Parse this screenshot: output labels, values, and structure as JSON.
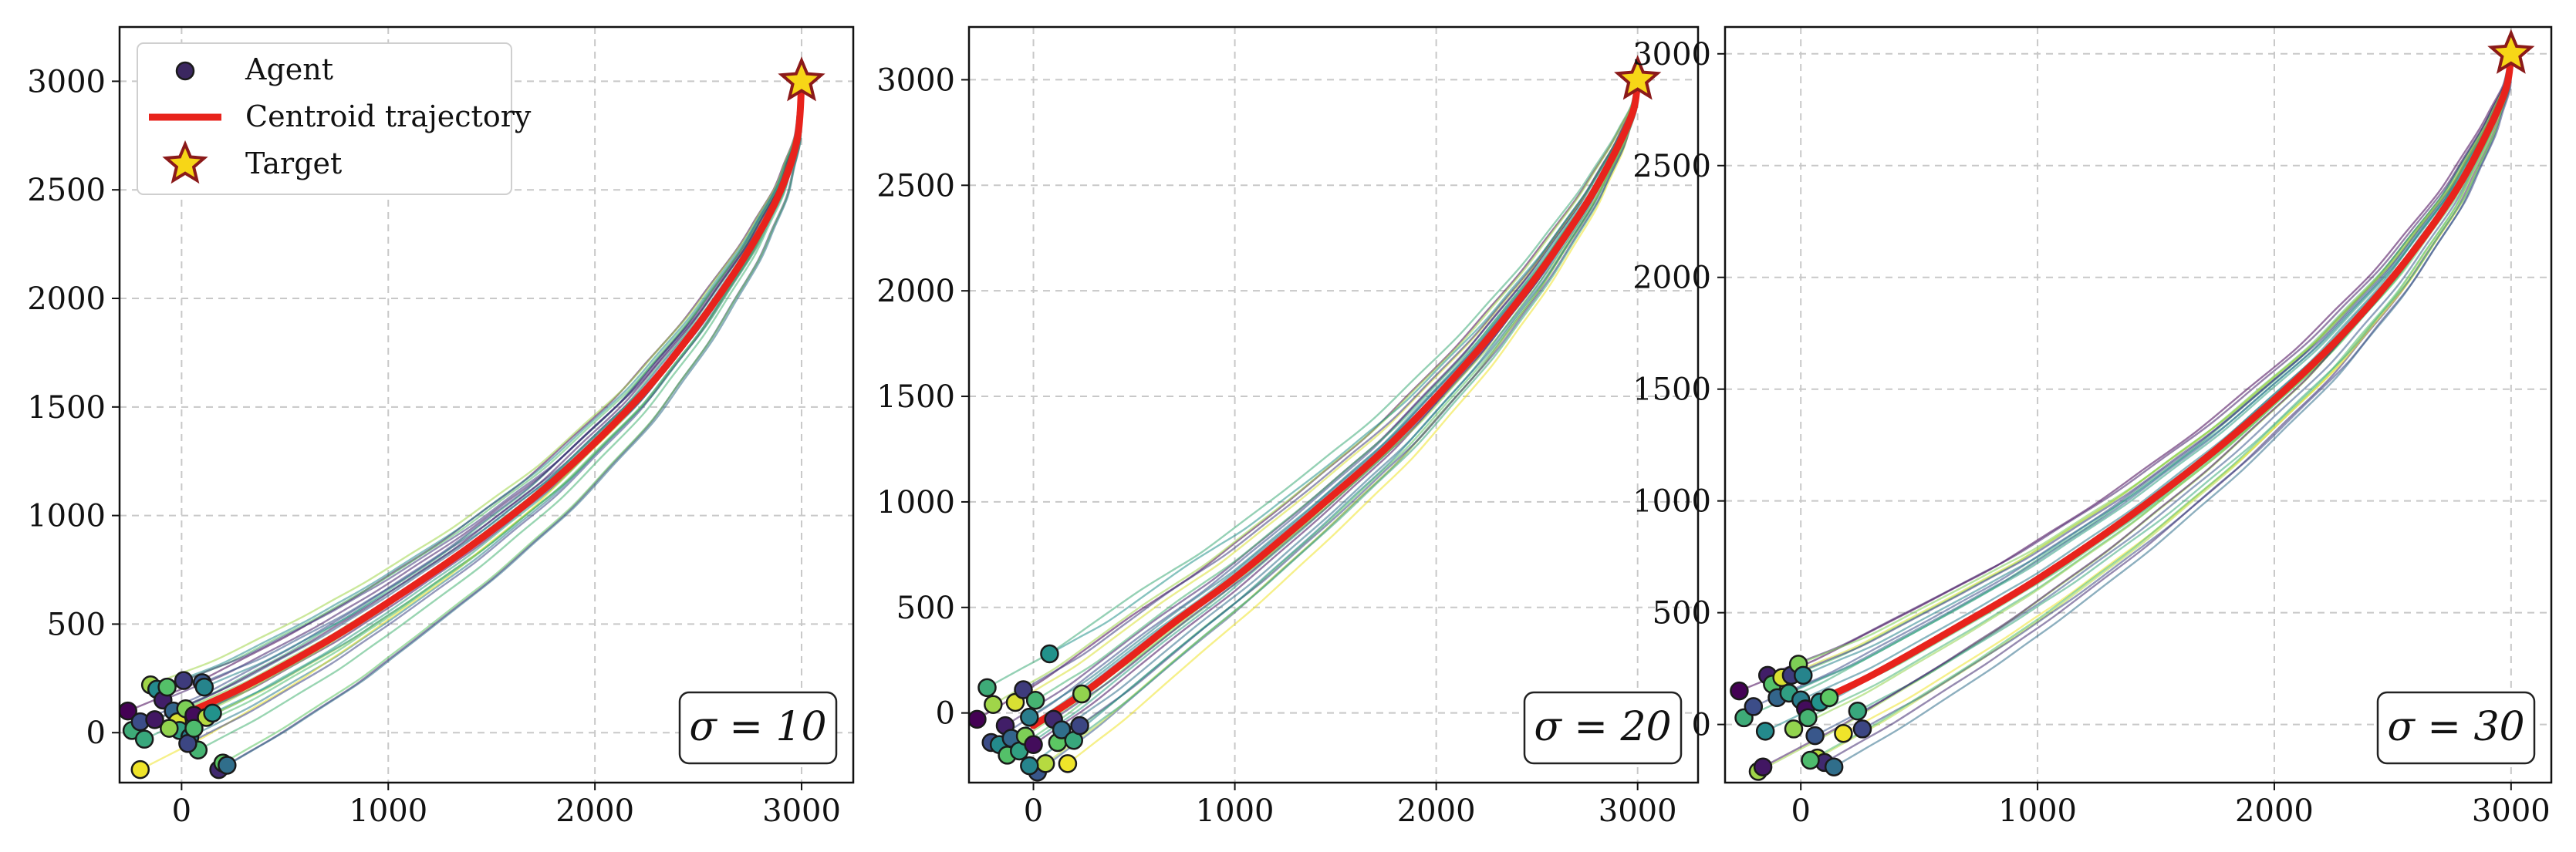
{
  "legend": {
    "agent_label": "Agent",
    "centroid_label": "Centroid trajectory",
    "target_label": "Target"
  },
  "colors": {
    "centroid": "#e8231c",
    "target_fill": "#f7d617",
    "target_edge": "#8b1a1a",
    "grid": "#c8c8c8",
    "viridis": [
      "#440154",
      "#3b528b",
      "#21918c",
      "#5ec962",
      "#fde725"
    ]
  },
  "chart_data": [
    {
      "type": "line",
      "annotation": "σ = 10",
      "xlim": [
        -300,
        3250
      ],
      "ylim": [
        -230,
        3250
      ],
      "xticks": [
        0,
        1000,
        2000,
        3000
      ],
      "yticks": [
        0,
        500,
        1000,
        1500,
        2000,
        2500,
        3000
      ],
      "grid": true,
      "legend_position": "upper-left",
      "target": [
        3000,
        3000
      ],
      "centroid": [
        [
          0,
          80
        ],
        [
          300,
          210
        ],
        [
          700,
          420
        ],
        [
          1000,
          600
        ],
        [
          1400,
          860
        ],
        [
          1800,
          1160
        ],
        [
          2200,
          1530
        ],
        [
          2500,
          1880
        ],
        [
          2750,
          2230
        ],
        [
          2900,
          2500
        ],
        [
          2980,
          2740
        ],
        [
          3000,
          3000
        ]
      ],
      "agents": [
        [
          -260,
          100
        ],
        [
          -240,
          10
        ],
        [
          -200,
          50
        ],
        [
          -150,
          220
        ],
        [
          -120,
          200
        ],
        [
          -90,
          150
        ],
        [
          -70,
          210
        ],
        [
          -40,
          100
        ],
        [
          -20,
          50
        ],
        [
          -10,
          10
        ],
        [
          10,
          240
        ],
        [
          20,
          110
        ],
        [
          40,
          -20
        ],
        [
          60,
          80
        ],
        [
          80,
          -80
        ],
        [
          100,
          230
        ],
        [
          120,
          70
        ],
        [
          150,
          90
        ],
        [
          180,
          -170
        ],
        [
          200,
          -140
        ],
        [
          220,
          -150
        ],
        [
          -200,
          -170
        ],
        [
          -180,
          -30
        ],
        [
          30,
          -50
        ],
        [
          -60,
          20
        ],
        [
          110,
          210
        ],
        [
          -130,
          60
        ],
        [
          60,
          20
        ]
      ]
    },
    {
      "type": "line",
      "annotation": "σ = 20",
      "xlim": [
        -320,
        3300
      ],
      "ylim": [
        -330,
        3250
      ],
      "xticks": [
        0,
        1000,
        2000,
        3000
      ],
      "yticks": [
        0,
        500,
        1000,
        1500,
        2000,
        2500,
        3000
      ],
      "grid": true,
      "legend_position": "",
      "target": [
        3000,
        3000
      ],
      "centroid": [
        [
          0,
          -60
        ],
        [
          300,
          130
        ],
        [
          700,
          430
        ],
        [
          1000,
          640
        ],
        [
          1400,
          960
        ],
        [
          1800,
          1300
        ],
        [
          2200,
          1710
        ],
        [
          2500,
          2070
        ],
        [
          2750,
          2420
        ],
        [
          2900,
          2680
        ],
        [
          2980,
          2860
        ],
        [
          3000,
          3000
        ]
      ],
      "agents": [
        [
          -280,
          -30
        ],
        [
          -230,
          120
        ],
        [
          -210,
          -140
        ],
        [
          -200,
          40
        ],
        [
          -170,
          -150
        ],
        [
          -140,
          -60
        ],
        [
          -130,
          -200
        ],
        [
          -110,
          -120
        ],
        [
          -90,
          50
        ],
        [
          -70,
          -180
        ],
        [
          -50,
          110
        ],
        [
          -40,
          -110
        ],
        [
          -20,
          -20
        ],
        [
          0,
          -150
        ],
        [
          10,
          60
        ],
        [
          20,
          -280
        ],
        [
          60,
          -240
        ],
        [
          80,
          280
        ],
        [
          100,
          -30
        ],
        [
          120,
          -140
        ],
        [
          140,
          -80
        ],
        [
          170,
          -240
        ],
        [
          200,
          -130
        ],
        [
          230,
          -60
        ],
        [
          240,
          90
        ],
        [
          -20,
          -250
        ]
      ]
    },
    {
      "type": "line",
      "annotation": "σ = 30",
      "xlim": [
        -320,
        3170
      ],
      "ylim": [
        -260,
        3120
      ],
      "xticks": [
        0,
        1000,
        2000,
        3000
      ],
      "yticks": [
        0,
        500,
        1000,
        1500,
        2000,
        2500,
        3000
      ],
      "grid": true,
      "legend_position": "",
      "target": [
        3000,
        3000
      ],
      "centroid": [
        [
          0,
          70
        ],
        [
          300,
          220
        ],
        [
          700,
          460
        ],
        [
          1000,
          650
        ],
        [
          1400,
          940
        ],
        [
          1800,
          1270
        ],
        [
          2200,
          1650
        ],
        [
          2500,
          2000
        ],
        [
          2750,
          2360
        ],
        [
          2900,
          2650
        ],
        [
          2980,
          2850
        ],
        [
          3000,
          3000
        ]
      ],
      "agents": [
        [
          -260,
          150
        ],
        [
          -240,
          30
        ],
        [
          -200,
          80
        ],
        [
          -180,
          -210
        ],
        [
          -150,
          -30
        ],
        [
          -140,
          220
        ],
        [
          -120,
          180
        ],
        [
          -100,
          120
        ],
        [
          -80,
          210
        ],
        [
          -50,
          140
        ],
        [
          -40,
          220
        ],
        [
          -10,
          270
        ],
        [
          0,
          110
        ],
        [
          20,
          70
        ],
        [
          30,
          30
        ],
        [
          60,
          -50
        ],
        [
          70,
          -150
        ],
        [
          80,
          100
        ],
        [
          100,
          -170
        ],
        [
          120,
          120
        ],
        [
          140,
          -190
        ],
        [
          180,
          -40
        ],
        [
          240,
          60
        ],
        [
          260,
          -20
        ],
        [
          -30,
          -20
        ],
        [
          10,
          220
        ],
        [
          -160,
          -190
        ],
        [
          40,
          -160
        ]
      ]
    }
  ]
}
